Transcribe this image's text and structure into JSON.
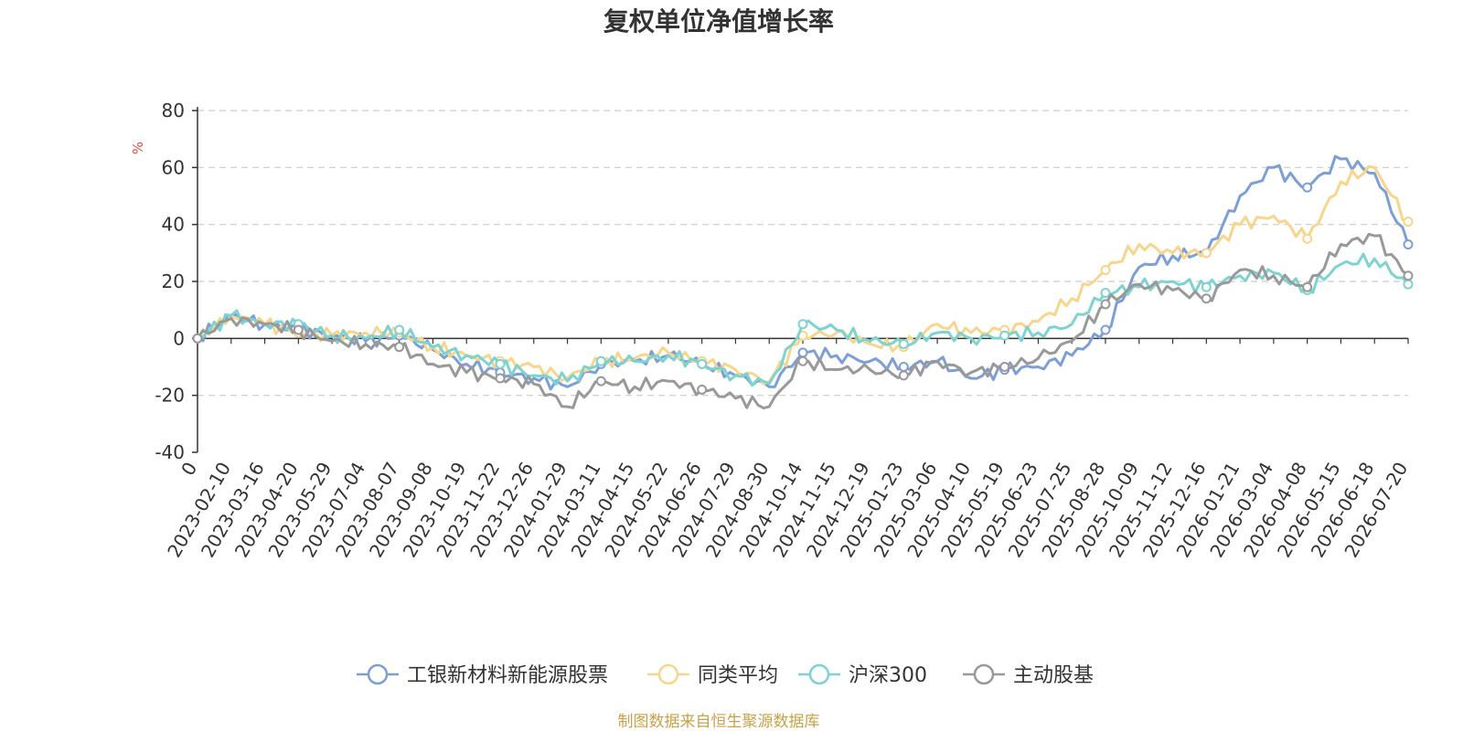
{
  "chart_data": {
    "type": "line",
    "title": "复权单位净值增长率",
    "ylabel": "%",
    "ylim": [
      -40,
      80
    ],
    "yticks": [
      80,
      60,
      40,
      20,
      0,
      -20,
      -40
    ],
    "grid": true,
    "legend_position": "bottom",
    "x": [
      "0",
      "2023-02-10",
      "2023-03-16",
      "2023-04-20",
      "2023-05-29",
      "2023-07-04",
      "2023-08-07",
      "2023-09-08",
      "2023-10-19",
      "2023-11-22",
      "2023-12-26",
      "2024-01-29",
      "2024-03-11",
      "2024-04-15",
      "2024-05-22",
      "2024-06-26",
      "2024-07-29",
      "2024-08-30",
      "2024-10-14",
      "2024-11-15",
      "2024-12-19",
      "2025-01-23",
      "2025-03-06",
      "2025-04-10",
      "2025-05-19",
      "2025-06-23",
      "2025-07-25",
      "2025-08-28",
      "2025-10-09",
      "2025-11-12",
      "2025-12-16",
      "2026-01-21",
      "2026-03-04",
      "2026-04-08",
      "2026-05-15",
      "2026-06-18",
      "2026-07-20"
    ],
    "series": [
      {
        "name": "工银新材料新能源股票",
        "color": "#7e9fd6",
        "values": [
          0,
          8,
          5,
          3,
          1,
          -1,
          1,
          -4,
          -9,
          -12,
          -14,
          -17,
          -9,
          -8,
          -6,
          -9,
          -13,
          -17,
          -5,
          -6,
          -8,
          -10,
          -8,
          -14,
          -11,
          -10,
          -6,
          3,
          25,
          29,
          30,
          50,
          60,
          53,
          63,
          58,
          33
        ]
      },
      {
        "name": "同类平均",
        "color": "#f8d58c",
        "values": [
          0,
          8,
          5,
          2,
          1,
          2,
          2,
          -3,
          -6,
          -8,
          -10,
          -14,
          -8,
          -7,
          -5,
          -8,
          -11,
          -15,
          1,
          2,
          -2,
          -3,
          5,
          2,
          3,
          6,
          14,
          24,
          33,
          30,
          30,
          40,
          43,
          35,
          55,
          60,
          41
        ]
      },
      {
        "name": "沪深300",
        "color": "#7dd3cf",
        "values": [
          0,
          8,
          5,
          5,
          1,
          0,
          3,
          -3,
          -6,
          -9,
          -13,
          -15,
          -8,
          -8,
          -6,
          -9,
          -13,
          -16,
          5,
          3,
          -1,
          -2,
          2,
          0,
          1,
          2,
          5,
          16,
          18,
          20,
          18,
          22,
          23,
          17,
          26,
          28,
          19
        ]
      },
      {
        "name": "主动股基",
        "color": "#999999",
        "values": [
          0,
          7,
          5,
          3,
          -1,
          -2,
          -3,
          -9,
          -12,
          -14,
          -16,
          -24,
          -15,
          -17,
          -15,
          -18,
          -21,
          -24,
          -8,
          -11,
          -11,
          -13,
          -8,
          -12,
          -10,
          -7,
          -1,
          12,
          19,
          17,
          14,
          24,
          22,
          18,
          33,
          36,
          22
        ]
      }
    ]
  },
  "source": "制图数据来自恒生聚源数据库",
  "colors": {
    "axis": "#333333",
    "grid": "#cccccc",
    "source": "#c8a24a",
    "ylabel": "#e64646"
  }
}
